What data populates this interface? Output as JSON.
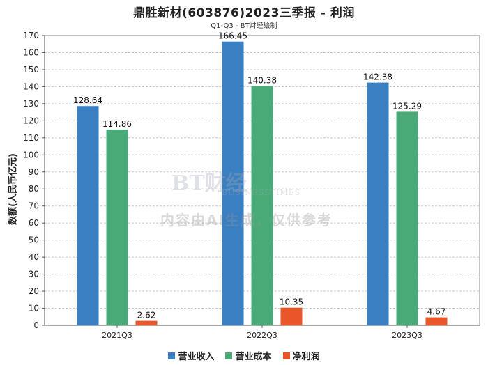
{
  "chart_data": {
    "type": "bar",
    "title": "鼎胜新材(603876)2023三季报 - 利润",
    "subtitle": "Q1-Q3 - BT财经绘制",
    "xlabel": "",
    "ylabel": "数额(人民币亿元)",
    "ylim": [
      0,
      170
    ],
    "yticks": [
      0,
      10,
      20,
      30,
      40,
      50,
      60,
      70,
      80,
      90,
      100,
      110,
      120,
      130,
      140,
      150,
      160,
      170
    ],
    "grid": true,
    "legend_position": "bottom-center",
    "categories": [
      "2021Q3",
      "2022Q3",
      "2023Q3"
    ],
    "series": [
      {
        "name": "营业收入",
        "color": "#3a7fc1",
        "values": [
          128.64,
          166.45,
          142.38
        ],
        "labels": [
          "128.64",
          "166.45",
          "142.38"
        ]
      },
      {
        "name": "营业成本",
        "color": "#4aaa78",
        "values": [
          114.86,
          140.38,
          125.29
        ],
        "labels": [
          "114.86",
          "140.38",
          "125.29"
        ]
      },
      {
        "name": "净利润",
        "color": "#e8562a",
        "values": [
          2.62,
          10.35,
          4.67
        ],
        "labels": [
          "2.62",
          "10.35",
          "4.67"
        ]
      }
    ]
  },
  "watermark": {
    "logo_text": "BT财经",
    "logo_sub": "BUSINESSTIMES",
    "notice": "内容由AI生成，仅供参考"
  }
}
